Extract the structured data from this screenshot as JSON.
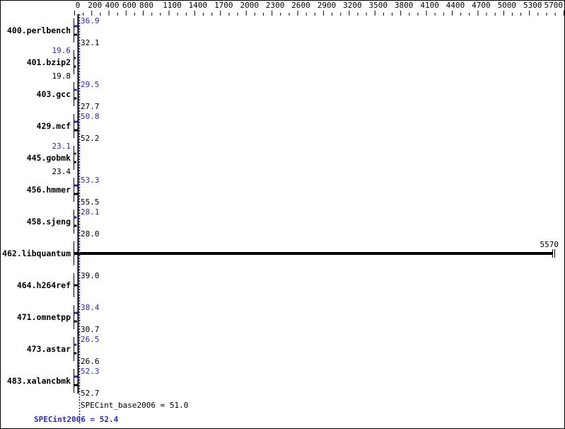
{
  "chart_data": {
    "type": "bar",
    "orientation": "horizontal",
    "xlim": [
      0,
      5700
    ],
    "x_ticks": [
      0,
      200,
      400,
      600,
      800,
      1100,
      1400,
      1700,
      2000,
      2300,
      2600,
      2900,
      3200,
      3500,
      3800,
      4100,
      4400,
      4700,
      5000,
      5300,
      5700
    ],
    "categories": [
      "400.perlbench",
      "401.bzip2",
      "403.gcc",
      "429.mcf",
      "445.gobmk",
      "456.hmmer",
      "458.sjeng",
      "462.libquantum",
      "464.h264ref",
      "471.omnetpp",
      "473.astar",
      "483.xalancbmk"
    ],
    "series": [
      {
        "name": "SPECint2006",
        "color": "#2b2bb0",
        "values": [
          36.9,
          19.6,
          29.5,
          50.8,
          23.1,
          53.3,
          28.1,
          null,
          null,
          38.4,
          26.5,
          52.3
        ],
        "labels": [
          "36.9",
          "19.6",
          "29.5",
          "50.8",
          "23.1",
          "53.3",
          "28.1",
          null,
          null,
          "38.4",
          "26.5",
          "52.3"
        ]
      },
      {
        "name": "SPECint_base2006",
        "color": "#000000",
        "values": [
          32.1,
          19.8,
          27.7,
          52.2,
          23.4,
          55.5,
          28.0,
          5570,
          39.0,
          30.7,
          26.6,
          52.7
        ],
        "labels": [
          "32.1",
          "19.8",
          "27.7",
          "52.2",
          "23.4",
          "55.5",
          "28.0",
          "5570",
          "39.0",
          "30.7",
          "26.6",
          "52.7"
        ]
      }
    ],
    "summary": {
      "base_label": "SPECint_base2006 = 51.0",
      "base_value": 51.0,
      "peak_label": "SPECint2006 = 52.4",
      "peak_value": 52.4
    },
    "grid": false
  }
}
